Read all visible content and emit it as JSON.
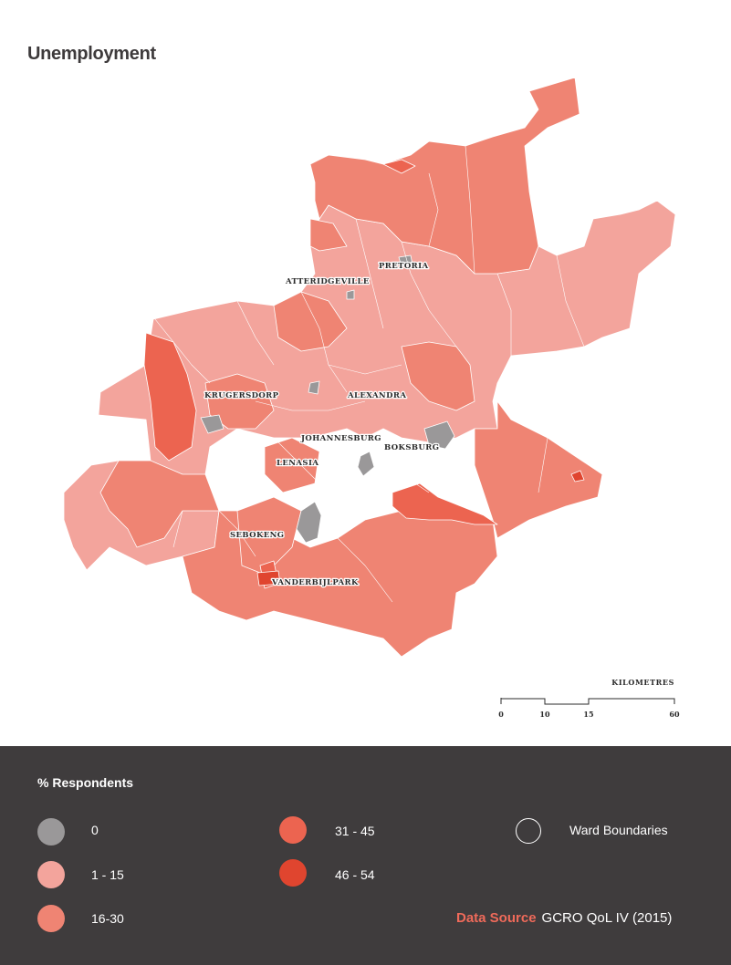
{
  "title": "Unemployment",
  "colors": {
    "zero": "#9a9899",
    "range_1_15": "#f3a49c",
    "range_16_30": "#ef8473",
    "range_31_45": "#ec6450",
    "range_46_54": "#e0452f",
    "ward_boundary": "#ffffff",
    "legend_background": "#3f3c3d",
    "source_accent": "#ef6a5a"
  },
  "map": {
    "places": [
      "PRETORIA",
      "ATTERIDGEVILLE",
      "KRUGERSDORP",
      "ALEXANDRA",
      "JOHANNESBURG",
      "BOKSBURG",
      "LENASIA",
      "SEBOKENG",
      "VANDERBIJLPARK"
    ]
  },
  "scale_bar": {
    "title": "KILOMETRES",
    "ticks": [
      "0",
      "10",
      "15",
      "60"
    ]
  },
  "legend": {
    "title": "% Respondents",
    "items": [
      {
        "label": "0",
        "color_key": "zero"
      },
      {
        "label": "1 - 15",
        "color_key": "range_1_15"
      },
      {
        "label": "16-30",
        "color_key": "range_16_30"
      },
      {
        "label": "31 - 45",
        "color_key": "range_31_45"
      },
      {
        "label": "46 - 54",
        "color_key": "range_46_54"
      }
    ],
    "ward_boundaries_label": "Ward Boundaries"
  },
  "source": {
    "label": "Data Source",
    "value": "GCRO QoL IV (2015)"
  }
}
